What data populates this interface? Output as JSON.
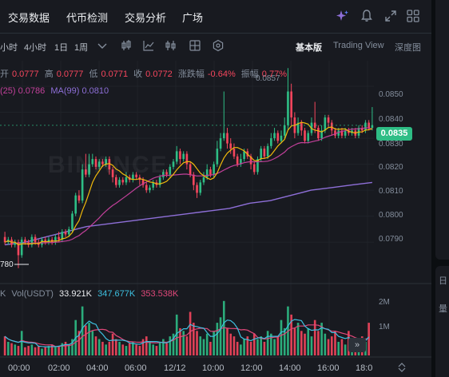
{
  "topnav": {
    "tabs": [
      "交易数据",
      "代币检测",
      "交易分析",
      "广场"
    ],
    "icons": [
      "ai-sparkle-icon",
      "bell-icon",
      "expand-icon",
      "grid-icon"
    ]
  },
  "toolbar": {
    "timeframes": [
      "小时",
      "4小时",
      "1日",
      "1周"
    ],
    "dropdown_icon": "chevron-down-icon",
    "tool_icons": [
      "candle-style-icon",
      "indicator-icon",
      "layout-icon",
      "settings-icon"
    ],
    "view_modes": [
      "基本版",
      "Trading View",
      "深度图"
    ],
    "active_view": "基本版"
  },
  "ohlc": {
    "open_label": "开",
    "open": "0.0777",
    "high_label": "高",
    "high": "0.0777",
    "low_label": "低",
    "low": "0.0771",
    "close_label": "收",
    "close": "0.0772",
    "change_label": "涨跌幅",
    "change": "-0.64%",
    "amplitude_label": "振幅",
    "amplitude": "0.77%"
  },
  "ma": {
    "ma25_label": "(25)",
    "ma25": "0.0786",
    "ma99_label": "MA(99)",
    "ma99": "0.0810"
  },
  "volume": {
    "prefix": "K",
    "label": "Vol(USDT)",
    "value1": "33.921K",
    "value2": "347.677K",
    "value3": "353.538K",
    "axis": [
      "2M",
      "1M"
    ]
  },
  "price_axis": [
    "0.0850",
    "0.0840",
    "0.0830",
    "0.0820",
    "0.0810",
    "0.0800",
    "0.0790"
  ],
  "current_price": "0.0835",
  "low_marker": "780",
  "high_marker": "0.0857",
  "time_axis": [
    "00:00",
    "02:00",
    "04:00",
    "06:00",
    "12/12",
    "10:00",
    "12:00",
    "14:00",
    "16:00",
    "18:0"
  ],
  "watermark": "BINANCE",
  "side_chars": [
    "日",
    "量"
  ],
  "colors": {
    "up": "#2ebd85",
    "down": "#f6465d",
    "ma7": "#f0b90b",
    "ma25": "#c2409a",
    "ma99": "#8e6fd8",
    "vol_ma1": "#3dc0e0",
    "vol_ma2": "#e0487a",
    "background": "#181a20"
  },
  "chart_data": {
    "type": "candlestick",
    "ylim": [
      0.0775,
      0.0858
    ],
    "y_ticks": [
      0.085,
      0.084,
      0.083,
      0.082,
      0.081,
      0.08,
      0.079
    ],
    "x_ticks": [
      "00:00",
      "02:00",
      "04:00",
      "06:00",
      "12/12",
      "10:00",
      "12:00",
      "14:00",
      "16:00",
      "18:0"
    ],
    "candles": [
      [
        0.0792,
        0.079,
        0.0794,
        0.0789
      ],
      [
        0.079,
        0.0791,
        0.0792,
        0.0789
      ],
      [
        0.0791,
        0.0789,
        0.0792,
        0.0788
      ],
      [
        0.0789,
        0.079,
        0.0791,
        0.0788
      ],
      [
        0.079,
        0.0785,
        0.0791,
        0.078
      ],
      [
        0.0785,
        0.0791,
        0.0792,
        0.0784
      ],
      [
        0.0791,
        0.079,
        0.0792,
        0.0789
      ],
      [
        0.079,
        0.0789,
        0.0791,
        0.0788
      ],
      [
        0.0789,
        0.0792,
        0.0793,
        0.0788
      ],
      [
        0.0792,
        0.079,
        0.0793,
        0.0789
      ],
      [
        0.079,
        0.0789,
        0.0791,
        0.0788
      ],
      [
        0.0789,
        0.0791,
        0.0792,
        0.0788
      ],
      [
        0.0791,
        0.079,
        0.0792,
        0.0789
      ],
      [
        0.079,
        0.0791,
        0.0792,
        0.0789
      ],
      [
        0.0791,
        0.079,
        0.0792,
        0.0789
      ],
      [
        0.079,
        0.0792,
        0.0793,
        0.0789
      ],
      [
        0.0792,
        0.0791,
        0.0794,
        0.079
      ],
      [
        0.0791,
        0.0794,
        0.0795,
        0.079
      ],
      [
        0.0794,
        0.0793,
        0.0795,
        0.0792
      ],
      [
        0.0793,
        0.0795,
        0.0796,
        0.0792
      ],
      [
        0.0795,
        0.0801,
        0.0802,
        0.0794
      ],
      [
        0.0801,
        0.0808,
        0.0809,
        0.08
      ],
      [
        0.0808,
        0.0806,
        0.081,
        0.0805
      ],
      [
        0.0806,
        0.0818,
        0.082,
        0.0805
      ],
      [
        0.0818,
        0.0816,
        0.0824,
        0.0815
      ],
      [
        0.0816,
        0.082,
        0.0824,
        0.0815
      ],
      [
        0.082,
        0.0822,
        0.0824,
        0.0819
      ],
      [
        0.0822,
        0.0819,
        0.0823,
        0.0818
      ],
      [
        0.0819,
        0.0821,
        0.0822,
        0.0818
      ],
      [
        0.0821,
        0.082,
        0.0822,
        0.0819
      ],
      [
        0.082,
        0.0822,
        0.0823,
        0.0819
      ],
      [
        0.0822,
        0.0818,
        0.0823,
        0.0816
      ],
      [
        0.0818,
        0.0815,
        0.0819,
        0.0813
      ],
      [
        0.0815,
        0.0812,
        0.0816,
        0.0811
      ],
      [
        0.0812,
        0.0814,
        0.0815,
        0.0811
      ],
      [
        0.0814,
        0.0813,
        0.0815,
        0.0812
      ],
      [
        0.0813,
        0.0815,
        0.0817,
        0.0812
      ],
      [
        0.0815,
        0.0814,
        0.0816,
        0.0813
      ],
      [
        0.0814,
        0.0816,
        0.0817,
        0.0813
      ],
      [
        0.0816,
        0.0815,
        0.0817,
        0.0814
      ],
      [
        0.0815,
        0.0814,
        0.0816,
        0.0812
      ],
      [
        0.0814,
        0.0812,
        0.0815,
        0.0811
      ],
      [
        0.0812,
        0.081,
        0.0813,
        0.0809
      ],
      [
        0.081,
        0.0811,
        0.0812,
        0.0809
      ],
      [
        0.0811,
        0.0813,
        0.0814,
        0.081
      ],
      [
        0.0813,
        0.0812,
        0.0814,
        0.0811
      ],
      [
        0.0812,
        0.0815,
        0.0816,
        0.0811
      ],
      [
        0.0815,
        0.0817,
        0.0818,
        0.0814
      ],
      [
        0.0817,
        0.0816,
        0.0818,
        0.0815
      ],
      [
        0.0816,
        0.0819,
        0.082,
        0.0815
      ],
      [
        0.0819,
        0.0821,
        0.0822,
        0.0818
      ],
      [
        0.0821,
        0.0825,
        0.0827,
        0.082
      ],
      [
        0.0825,
        0.0822,
        0.0826,
        0.082
      ],
      [
        0.0822,
        0.0824,
        0.0825,
        0.0821
      ],
      [
        0.0824,
        0.082,
        0.0825,
        0.0818
      ],
      [
        0.082,
        0.0816,
        0.0821,
        0.0815
      ],
      [
        0.0816,
        0.0812,
        0.0817,
        0.081
      ],
      [
        0.0812,
        0.0809,
        0.0813,
        0.0807
      ],
      [
        0.0809,
        0.0813,
        0.0814,
        0.0808
      ],
      [
        0.0813,
        0.0815,
        0.0817,
        0.0812
      ],
      [
        0.0815,
        0.0818,
        0.082,
        0.0814
      ],
      [
        0.0818,
        0.0816,
        0.0819,
        0.0815
      ],
      [
        0.0816,
        0.082,
        0.0821,
        0.0815
      ],
      [
        0.082,
        0.0826,
        0.0829,
        0.0819
      ],
      [
        0.0826,
        0.083,
        0.0832,
        0.0825
      ],
      [
        0.083,
        0.0832,
        0.0848,
        0.0829
      ],
      [
        0.0832,
        0.0828,
        0.0834,
        0.0826
      ],
      [
        0.0828,
        0.0826,
        0.083,
        0.0824
      ],
      [
        0.0826,
        0.0823,
        0.0828,
        0.0822
      ],
      [
        0.0823,
        0.082,
        0.0824,
        0.0819
      ],
      [
        0.082,
        0.0822,
        0.0824,
        0.0819
      ],
      [
        0.0822,
        0.0825,
        0.0826,
        0.0821
      ],
      [
        0.0825,
        0.0823,
        0.0826,
        0.0822
      ],
      [
        0.0823,
        0.082,
        0.0824,
        0.0818
      ],
      [
        0.082,
        0.0817,
        0.0821,
        0.0816
      ],
      [
        0.0817,
        0.0822,
        0.0823,
        0.0816
      ],
      [
        0.0822,
        0.0826,
        0.0827,
        0.0821
      ],
      [
        0.0826,
        0.0823,
        0.0827,
        0.0822
      ],
      [
        0.0823,
        0.0827,
        0.0828,
        0.0822
      ],
      [
        0.0827,
        0.083,
        0.0832,
        0.0826
      ],
      [
        0.083,
        0.0832,
        0.0834,
        0.0829
      ],
      [
        0.0832,
        0.0829,
        0.0833,
        0.0828
      ],
      [
        0.0829,
        0.0831,
        0.0833,
        0.0828
      ],
      [
        0.0831,
        0.0835,
        0.0838,
        0.083
      ],
      [
        0.0835,
        0.0848,
        0.0857,
        0.0833
      ],
      [
        0.0848,
        0.0838,
        0.0851,
        0.0835
      ],
      [
        0.0838,
        0.0832,
        0.084,
        0.083
      ],
      [
        0.0832,
        0.0836,
        0.0838,
        0.0831
      ],
      [
        0.0836,
        0.0833,
        0.0837,
        0.0831
      ],
      [
        0.0833,
        0.0829,
        0.0834,
        0.0828
      ],
      [
        0.0829,
        0.0832,
        0.0833,
        0.0828
      ],
      [
        0.0832,
        0.0836,
        0.0838,
        0.0831
      ],
      [
        0.0836,
        0.0834,
        0.0844,
        0.0832
      ],
      [
        0.0834,
        0.083,
        0.0835,
        0.0829
      ],
      [
        0.083,
        0.0833,
        0.0835,
        0.0829
      ],
      [
        0.0833,
        0.0838,
        0.0839,
        0.0832
      ],
      [
        0.0838,
        0.0836,
        0.0839,
        0.0834
      ],
      [
        0.0836,
        0.0833,
        0.0837,
        0.0831
      ],
      [
        0.0833,
        0.0831,
        0.0834,
        0.083
      ],
      [
        0.0831,
        0.0833,
        0.0834,
        0.083
      ],
      [
        0.0833,
        0.0831,
        0.0834,
        0.083
      ],
      [
        0.0831,
        0.0833,
        0.0834,
        0.083
      ],
      [
        0.0833,
        0.0832,
        0.0834,
        0.0831
      ],
      [
        0.0832,
        0.0833,
        0.0834,
        0.0831
      ],
      [
        0.0833,
        0.0831,
        0.0834,
        0.083
      ],
      [
        0.0831,
        0.0834,
        0.0835,
        0.083
      ],
      [
        0.0834,
        0.0833,
        0.0835,
        0.0832
      ],
      [
        0.0833,
        0.0836,
        0.0837,
        0.0832
      ],
      [
        0.0836,
        0.0834,
        0.0837,
        0.0833
      ],
      [
        0.0834,
        0.0835,
        0.0842,
        0.0833
      ]
    ],
    "ma99_line": [
      0.0789,
      0.079,
      0.0792,
      0.0794,
      0.0796,
      0.0797,
      0.0798,
      0.0799,
      0.08,
      0.0801,
      0.0802,
      0.0803,
      0.0805,
      0.0806,
      0.0808,
      0.081,
      0.0811,
      0.0812,
      0.0813
    ],
    "volume_k": [
      700,
      500,
      450,
      400,
      350,
      900,
      300,
      350,
      400,
      300,
      350,
      250,
      300,
      350,
      400,
      300,
      350,
      450,
      500,
      400,
      600,
      1300,
      900,
      1800,
      1100,
      1200,
      900,
      700,
      600,
      500,
      400,
      500,
      800,
      600,
      500,
      400,
      350,
      450,
      500,
      400,
      350,
      600,
      700,
      500,
      400,
      350,
      500,
      600,
      450,
      700,
      800,
      1500,
      1000,
      900,
      700,
      1600,
      1200,
      900,
      700,
      600,
      800,
      500,
      900,
      1200,
      1400,
      2000,
      1000,
      800,
      700,
      500,
      400,
      600,
      700,
      500,
      800,
      600,
      700,
      500,
      900,
      800,
      600,
      700,
      1300,
      1000,
      1800,
      1500,
      1000,
      1200,
      900,
      800,
      1000,
      700,
      1300,
      900,
      1200,
      800,
      600,
      700,
      900,
      500,
      600,
      400,
      900,
      500,
      600,
      400,
      700,
      500,
      1200
    ]
  }
}
